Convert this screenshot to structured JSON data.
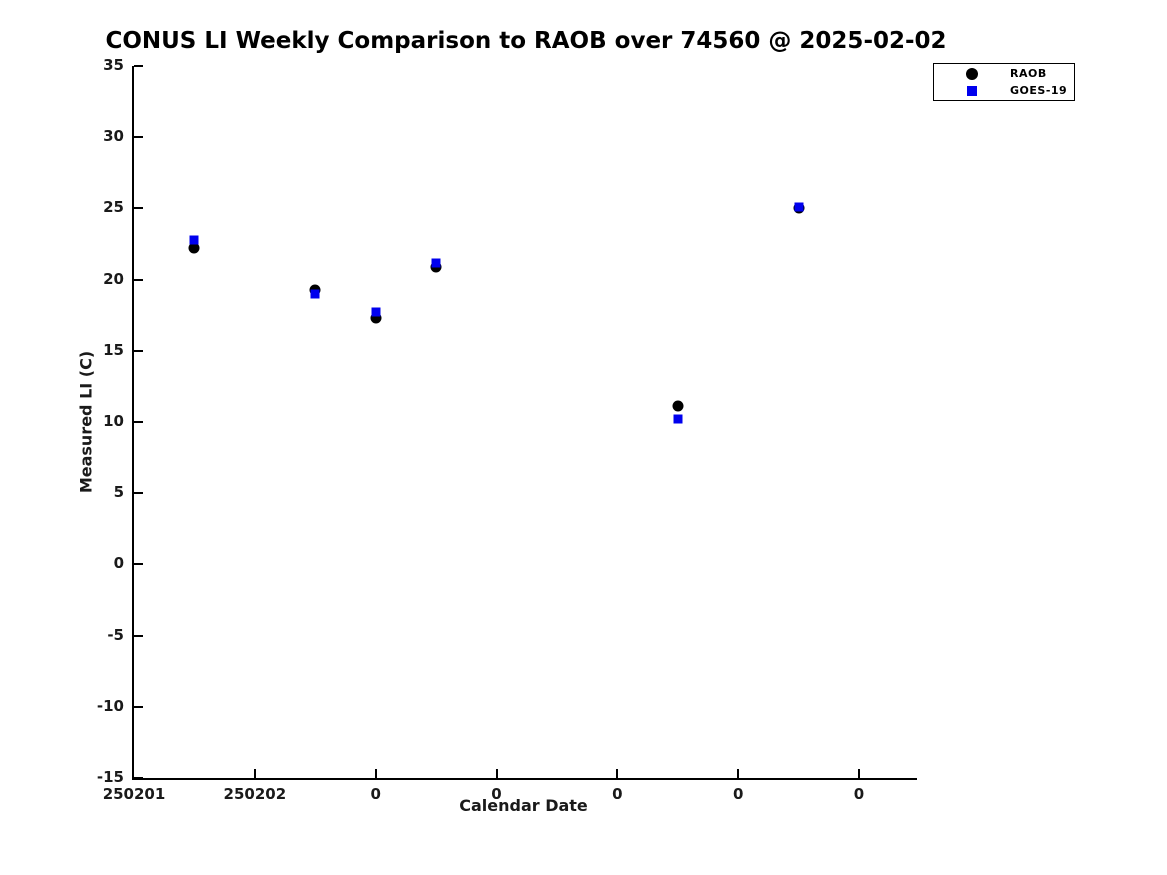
{
  "title": "CONUS LI Weekly Comparison to RAOB over 74560 @ 2025-02-02",
  "legend": {
    "items": [
      {
        "label": "RAOB",
        "marker": "circle",
        "color": "#000000"
      },
      {
        "label": "GOES-19",
        "marker": "square",
        "color": "#0000ee"
      }
    ]
  },
  "chart_data": {
    "type": "scatter",
    "title": "CONUS LI Weekly Comparison to RAOB over 74560 @ 2025-02-02",
    "xlabel": "Calendar Date",
    "ylabel": "Measured LI (C)",
    "ylim": [
      -15,
      35
    ],
    "yticks": [
      35,
      30,
      25,
      20,
      15,
      10,
      5,
      0,
      -5,
      -10,
      -15
    ],
    "xtick_labels": [
      "250201",
      "250202",
      "0",
      "0",
      "0",
      "0",
      "0"
    ],
    "xlim_days": [
      0,
      6.48
    ],
    "x_days": [
      0.5,
      1.5,
      2.0,
      2.5,
      4.5,
      5.5
    ],
    "series": [
      {
        "name": "RAOB",
        "marker": "circle",
        "color": "#000000",
        "values": [
          22.2,
          19.3,
          17.3,
          20.9,
          11.1,
          25.0
        ]
      },
      {
        "name": "GOES-19",
        "marker": "square",
        "color": "#0000ee",
        "values": [
          22.8,
          19.0,
          17.7,
          21.2,
          10.2,
          25.1
        ]
      }
    ],
    "grid": false,
    "legend_position": "top-right"
  }
}
